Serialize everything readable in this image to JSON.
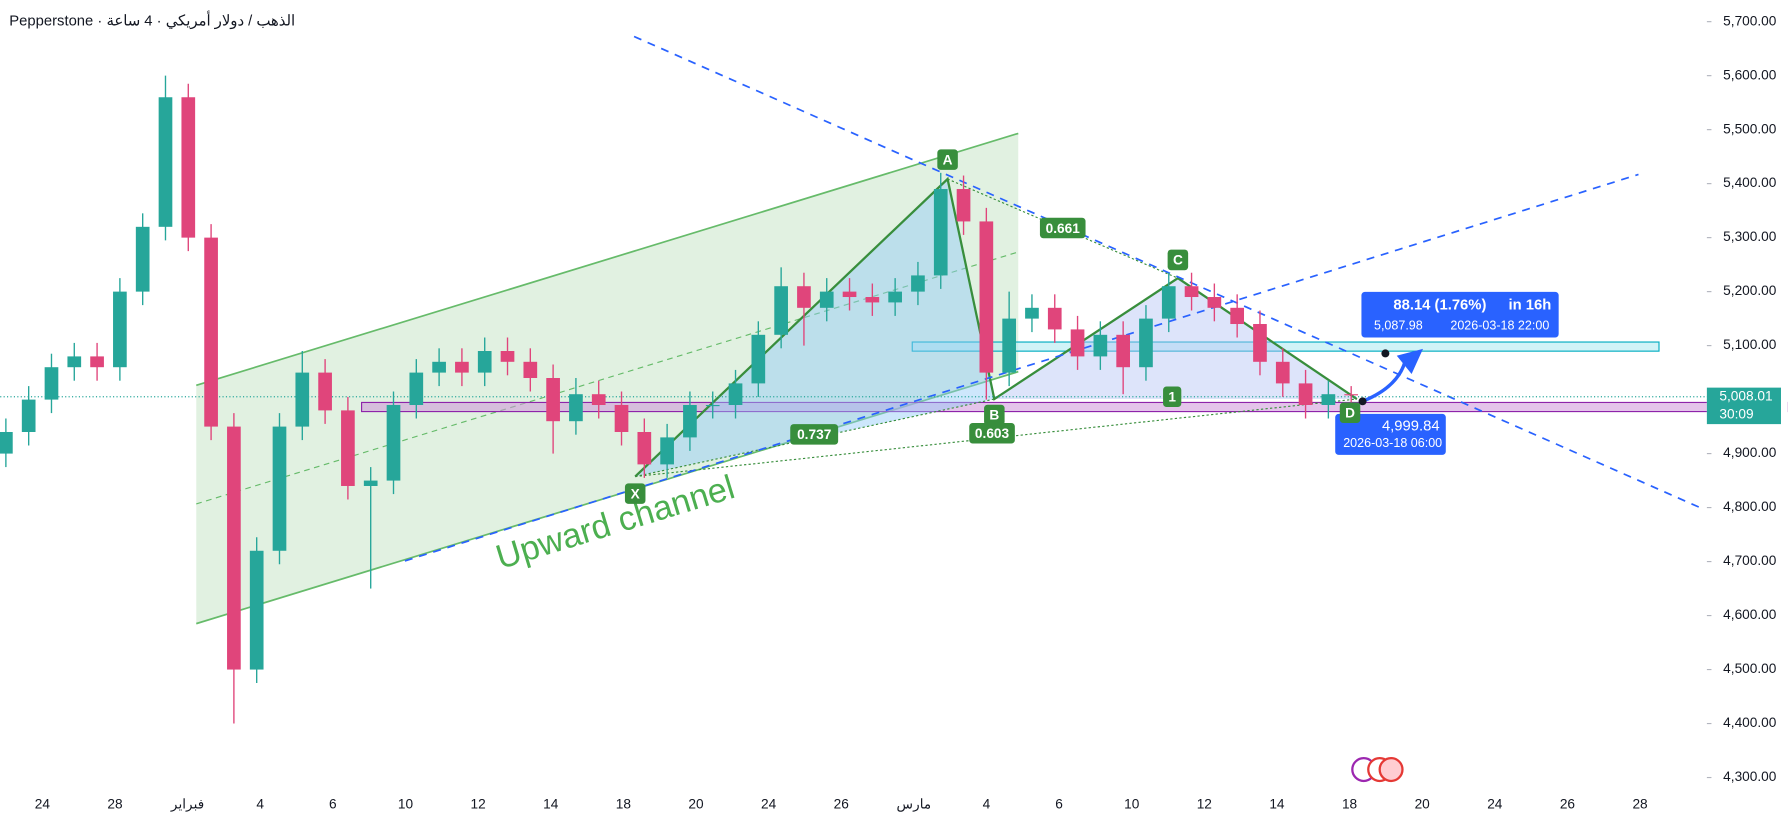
{
  "header": {
    "title": "Pepperstone · الذهب / دولار أمريكي · 4 ساعة"
  },
  "chart_data": {
    "type": "candlestick",
    "up_color": "#26a69a",
    "down_color": "#e0457b",
    "ylim": [
      4300,
      5700
    ],
    "yticks": [
      {
        "value": 5700,
        "label": "5,700.00"
      },
      {
        "value": 5600,
        "label": "5,600.00"
      },
      {
        "value": 5500,
        "label": "5,500.00"
      },
      {
        "value": 5400,
        "label": "5,400.00"
      },
      {
        "value": 5300,
        "label": "5,300.00"
      },
      {
        "value": 5200,
        "label": "5,200.00"
      },
      {
        "value": 5100,
        "label": "5,100.00"
      },
      {
        "value": 5000,
        "label": "5,000.00"
      },
      {
        "value": 4900,
        "label": "4,900.00"
      },
      {
        "value": 4800,
        "label": "4,800.00"
      },
      {
        "value": 4700,
        "label": "4,700.00"
      },
      {
        "value": 4600,
        "label": "4,600.00"
      },
      {
        "value": 4500,
        "label": "4,500.00"
      },
      {
        "value": 4400,
        "label": "4,400.00"
      },
      {
        "value": 4300,
        "label": "4,300.00"
      }
    ],
    "x_tick_labels": [
      "24",
      "28",
      "فبراير",
      "4",
      "6",
      "10",
      "12",
      "14",
      "18",
      "20",
      "24",
      "26",
      "مارس",
      "4",
      "6",
      "10",
      "12",
      "14",
      "18",
      "20",
      "24",
      "26",
      "28"
    ],
    "candles": [
      [
        4900,
        4965,
        4875,
        4940
      ],
      [
        4940,
        5025,
        4915,
        5000
      ],
      [
        5000,
        5085,
        4975,
        5060
      ],
      [
        5060,
        5105,
        5035,
        5080
      ],
      [
        5080,
        5105,
        5035,
        5060
      ],
      [
        5060,
        5225,
        5035,
        5200
      ],
      [
        5200,
        5345,
        5175,
        5320
      ],
      [
        5320,
        5600,
        5295,
        5560
      ],
      [
        5560,
        5585,
        5275,
        5300
      ],
      [
        5300,
        5325,
        4925,
        4950
      ],
      [
        4950,
        4975,
        4400,
        4500
      ],
      [
        4500,
        4745,
        4475,
        4720
      ],
      [
        4720,
        4975,
        4695,
        4950
      ],
      [
        4950,
        5090,
        4925,
        5050
      ],
      [
        5050,
        5075,
        4955,
        4980
      ],
      [
        4980,
        5005,
        4815,
        4840
      ],
      [
        4840,
        4875,
        4650,
        4850
      ],
      [
        4850,
        5015,
        4825,
        4990
      ],
      [
        4990,
        5075,
        4965,
        5050
      ],
      [
        5050,
        5095,
        5025,
        5070
      ],
      [
        5070,
        5095,
        5025,
        5050
      ],
      [
        5050,
        5115,
        5025,
        5090
      ],
      [
        5090,
        5115,
        5045,
        5070
      ],
      [
        5070,
        5095,
        5015,
        5040
      ],
      [
        5040,
        5065,
        4900,
        4960
      ],
      [
        4960,
        5040,
        4935,
        5010
      ],
      [
        5010,
        5035,
        4965,
        4990
      ],
      [
        4990,
        5015,
        4915,
        4940
      ],
      [
        4940,
        4965,
        4855,
        4880
      ],
      [
        4880,
        4955,
        4855,
        4930
      ],
      [
        4930,
        5015,
        4905,
        4990
      ],
      [
        4990,
        5015,
        4965,
        4990
      ],
      [
        4990,
        5055,
        4965,
        5030
      ],
      [
        5030,
        5145,
        5005,
        5120
      ],
      [
        5120,
        5245,
        5095,
        5210
      ],
      [
        5210,
        5235,
        5100,
        5170
      ],
      [
        5170,
        5225,
        5145,
        5200
      ],
      [
        5200,
        5225,
        5165,
        5190
      ],
      [
        5190,
        5215,
        5155,
        5180
      ],
      [
        5180,
        5225,
        5155,
        5200
      ],
      [
        5200,
        5255,
        5175,
        5230
      ],
      [
        5230,
        5420,
        5205,
        5390
      ],
      [
        5390,
        5415,
        5305,
        5330
      ],
      [
        5330,
        5355,
        5000,
        5050
      ],
      [
        5050,
        5200,
        5025,
        5150
      ],
      [
        5150,
        5195,
        5125,
        5170
      ],
      [
        5170,
        5195,
        5105,
        5130
      ],
      [
        5130,
        5155,
        5055,
        5080
      ],
      [
        5080,
        5145,
        5055,
        5120
      ],
      [
        5120,
        5145,
        5010,
        5060
      ],
      [
        5060,
        5175,
        5035,
        5150
      ],
      [
        5150,
        5235,
        5125,
        5210
      ],
      [
        5210,
        5235,
        5165,
        5190
      ],
      [
        5190,
        5215,
        5145,
        5170
      ],
      [
        5170,
        5195,
        5115,
        5140
      ],
      [
        5140,
        5165,
        5045,
        5070
      ],
      [
        5070,
        5095,
        5005,
        5030
      ],
      [
        5030,
        5055,
        4965,
        4990
      ],
      [
        4990,
        5035,
        4965,
        5010
      ],
      [
        5010,
        5025,
        4995,
        5008
      ]
    ],
    "last_price": "5,008.01",
    "countdown": "30:09",
    "annotations": {
      "channel": "Upward channel",
      "points": [
        "X",
        "A",
        "B",
        "C",
        "D"
      ],
      "ratios": [
        "0.737",
        "0.603",
        "0.661",
        "1"
      ],
      "projection_change": "88.14 (1.76%)",
      "projection_time": "in 16h",
      "target_price": "5,087.98",
      "target_date": "2026-03-18 22:00",
      "entry_price": "4,999.84",
      "entry_date": "2026-03-18 06:00"
    }
  }
}
